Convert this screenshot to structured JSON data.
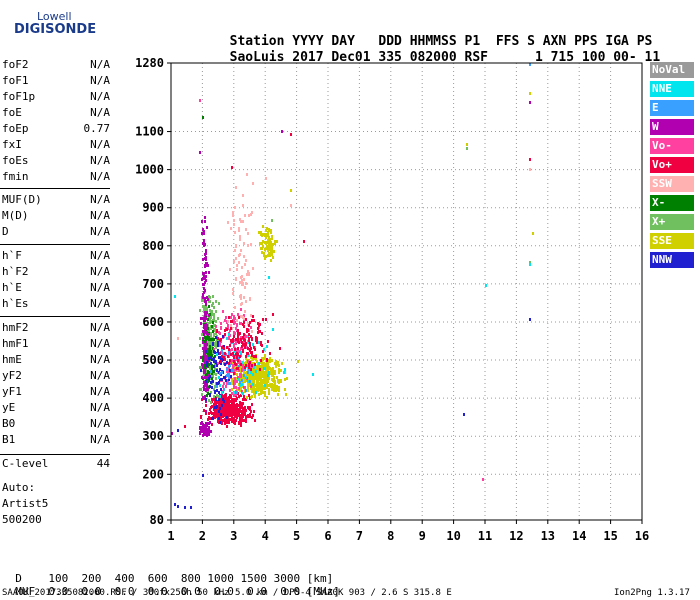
{
  "logo": {
    "line1": "Lowell",
    "line2": "DIGISONDE"
  },
  "header": {
    "labels": [
      "Station",
      "YYYY",
      "DAY",
      "DDD",
      "HHMMSS",
      "P1",
      "FFS",
      "S",
      "AXN",
      "PPS",
      "IGA",
      "PS"
    ],
    "values": [
      "SaoLuis",
      "2017",
      "Dec01",
      "335",
      "082000",
      "RSF",
      "1",
      "715",
      "100",
      "00-",
      "11"
    ]
  },
  "params": {
    "group1": [
      {
        "name": "foF2",
        "value": "N/A"
      },
      {
        "name": "foF1",
        "value": "N/A"
      },
      {
        "name": "foF1p",
        "value": "N/A"
      },
      {
        "name": "foE",
        "value": "N/A"
      },
      {
        "name": "foEp",
        "value": "0.77"
      },
      {
        "name": "fxI",
        "value": "N/A"
      },
      {
        "name": "foEs",
        "value": "N/A"
      },
      {
        "name": "fmin",
        "value": "N/A"
      }
    ],
    "group2": [
      {
        "name": "MUF(D)",
        "value": "N/A"
      },
      {
        "name": "M(D)",
        "value": "N/A"
      },
      {
        "name": "D",
        "value": "N/A"
      }
    ],
    "group3": [
      {
        "name": "h`F",
        "value": "N/A"
      },
      {
        "name": "h`F2",
        "value": "N/A"
      },
      {
        "name": "h`E",
        "value": "N/A"
      },
      {
        "name": "h`Es",
        "value": "N/A"
      }
    ],
    "group4": [
      {
        "name": "hmF2",
        "value": "N/A"
      },
      {
        "name": "hmF1",
        "value": "N/A"
      },
      {
        "name": "hmE",
        "value": "N/A"
      },
      {
        "name": "yF2",
        "value": "N/A"
      },
      {
        "name": "yF1",
        "value": "N/A"
      },
      {
        "name": "yE",
        "value": "N/A"
      },
      {
        "name": "B0",
        "value": "N/A"
      },
      {
        "name": "B1",
        "value": "N/A"
      }
    ],
    "clevel": {
      "name": "C-level",
      "value": "44"
    }
  },
  "auto": {
    "line1": "Auto:",
    "line2": "Artist5",
    "line3": "500200"
  },
  "legend": [
    {
      "label": "NoVal",
      "color": "#9a9a9a"
    },
    {
      "label": "NNE",
      "color": "#00e5ee"
    },
    {
      "label": "E",
      "color": "#3aa0ff"
    },
    {
      "label": "W",
      "color": "#b000b0"
    },
    {
      "label": "Vo-",
      "color": "#ff40a0"
    },
    {
      "label": "Vo+",
      "color": "#f00040"
    },
    {
      "label": "SSW",
      "color": "#ffb0b0"
    },
    {
      "label": "X-",
      "color": "#008000"
    },
    {
      "label": "X+",
      "color": "#70c060"
    },
    {
      "label": "SSE",
      "color": "#d0d000"
    },
    {
      "label": "NNW",
      "color": "#2020d0"
    }
  ],
  "footer": {
    "d_label": "D",
    "d_values": [
      "100",
      "200",
      "400",
      "600",
      "800",
      "1000",
      "1500",
      "3000",
      "[km]"
    ],
    "muf_label": "MUF",
    "muf_values": [
      "0.0",
      "0.0",
      "0.0",
      "0.0",
      "0.0",
      "0.0",
      "0.0",
      "0.0",
      "[MHz]"
    ],
    "info": "SAA0K_2017335082000.RSF / 300fx256h 50 kHz 5.0 km / DPS-4 SAA0K 903 / 2.6 S 315.8 E",
    "version": "Ion2Png 1.3.17"
  },
  "chart_data": {
    "type": "scatter",
    "xlim": [
      1,
      16
    ],
    "ylim": [
      80,
      1280
    ],
    "x_ticks": [
      1,
      2,
      3,
      4,
      5,
      6,
      7,
      8,
      9,
      10,
      11,
      12,
      13,
      14,
      15,
      16
    ],
    "y_ticks": [
      80,
      200,
      300,
      400,
      500,
      600,
      700,
      800,
      900,
      1000,
      1100,
      1280
    ],
    "grid": true,
    "legend_position": "right",
    "clusters": [
      {
        "name": "Vo+",
        "x_range": [
          1.8,
          3.8
        ],
        "y_range": [
          330,
          420
        ],
        "count": 420
      },
      {
        "name": "SSE",
        "x_range": [
          2.6,
          4.8
        ],
        "y_range": [
          400,
          520
        ],
        "count": 520
      },
      {
        "name": "SSE",
        "x_range": [
          3.7,
          4.4
        ],
        "y_range": [
          760,
          860
        ],
        "count": 90
      },
      {
        "name": "X+",
        "x_range": [
          1.8,
          2.6
        ],
        "y_range": [
          380,
          700
        ],
        "count": 260
      },
      {
        "name": "X-",
        "x_range": [
          1.9,
          2.4
        ],
        "y_range": [
          400,
          650
        ],
        "count": 120
      },
      {
        "name": "W",
        "x_range": [
          1.9,
          2.2
        ],
        "y_range": [
          300,
          900
        ],
        "count": 160
      },
      {
        "name": "W",
        "x_range": [
          1.8,
          2.3
        ],
        "y_range": [
          300,
          340
        ],
        "count": 80
      },
      {
        "name": "Vo-",
        "x_range": [
          2.2,
          3.8
        ],
        "y_range": [
          400,
          650
        ],
        "count": 200
      },
      {
        "name": "SSW",
        "x_range": [
          2.6,
          3.8
        ],
        "y_range": [
          500,
          1000
        ],
        "count": 90
      },
      {
        "name": "NNW",
        "x_range": [
          1.8,
          3.2
        ],
        "y_range": [
          320,
          600
        ],
        "count": 90
      },
      {
        "name": "NNE",
        "x_range": [
          2.0,
          4.8
        ],
        "y_range": [
          380,
          600
        ],
        "count": 50
      },
      {
        "name": "E",
        "x_range": [
          2.0,
          4.0
        ],
        "y_range": [
          400,
          550
        ],
        "count": 40
      },
      {
        "name": "Vo+",
        "x_range": [
          2.0,
          4.6
        ],
        "y_range": [
          460,
          640
        ],
        "count": 150
      }
    ],
    "points": [
      {
        "x": 1.2,
        "y": 120,
        "series": "NNW"
      },
      {
        "x": 1.4,
        "y": 118,
        "series": "NNW"
      },
      {
        "x": 1.6,
        "y": 116,
        "series": "NNW"
      },
      {
        "x": 1.1,
        "y": 125,
        "series": "NNW"
      },
      {
        "x": 1.9,
        "y": 1185,
        "series": "Vo-"
      },
      {
        "x": 1.9,
        "y": 1050,
        "series": "W"
      },
      {
        "x": 2.0,
        "y": 1140,
        "series": "X-"
      },
      {
        "x": 4.5,
        "y": 1105,
        "series": "W"
      },
      {
        "x": 4.8,
        "y": 1095,
        "series": "Vo+"
      },
      {
        "x": 10.4,
        "y": 1070,
        "series": "SSE"
      },
      {
        "x": 10.4,
        "y": 1060,
        "series": "X+"
      },
      {
        "x": 12.4,
        "y": 1280,
        "series": "E"
      },
      {
        "x": 12.4,
        "y": 1205,
        "series": "SSE"
      },
      {
        "x": 12.4,
        "y": 1180,
        "series": "W"
      },
      {
        "x": 12.4,
        "y": 1030,
        "series": "Vo+"
      },
      {
        "x": 12.4,
        "y": 1005,
        "series": "SSW"
      },
      {
        "x": 12.5,
        "y": 835,
        "series": "SSE"
      },
      {
        "x": 12.4,
        "y": 760,
        "series": "X+"
      },
      {
        "x": 12.4,
        "y": 755,
        "series": "NNE"
      },
      {
        "x": 12.4,
        "y": 610,
        "series": "NNW"
      },
      {
        "x": 10.3,
        "y": 360,
        "series": "NNW"
      },
      {
        "x": 11.0,
        "y": 700,
        "series": "NNE"
      },
      {
        "x": 10.9,
        "y": 190,
        "series": "Vo-"
      },
      {
        "x": 5.5,
        "y": 465,
        "series": "NNE"
      },
      {
        "x": 5.2,
        "y": 815,
        "series": "Vo+"
      },
      {
        "x": 4.8,
        "y": 950,
        "series": "SSE"
      },
      {
        "x": 4.8,
        "y": 910,
        "series": "SSW"
      },
      {
        "x": 4.6,
        "y": 480,
        "series": "NNE"
      },
      {
        "x": 2.9,
        "y": 1010,
        "series": "Vo+"
      },
      {
        "x": 3.4,
        "y": 990,
        "series": "SSW"
      },
      {
        "x": 1.2,
        "y": 320,
        "series": "NNW"
      },
      {
        "x": 1.4,
        "y": 330,
        "series": "Vo+"
      },
      {
        "x": 1.0,
        "y": 310,
        "series": "W"
      },
      {
        "x": 4.0,
        "y": 980,
        "series": "SSW"
      },
      {
        "x": 2.0,
        "y": 200,
        "series": "NNW"
      },
      {
        "x": 1.1,
        "y": 670,
        "series": "NNE"
      },
      {
        "x": 1.2,
        "y": 560,
        "series": "SSW"
      },
      {
        "x": 4.2,
        "y": 870,
        "series": "X+"
      },
      {
        "x": 4.1,
        "y": 720,
        "series": "NNE"
      },
      {
        "x": 5.0,
        "y": 500,
        "series": "SSE"
      }
    ]
  }
}
